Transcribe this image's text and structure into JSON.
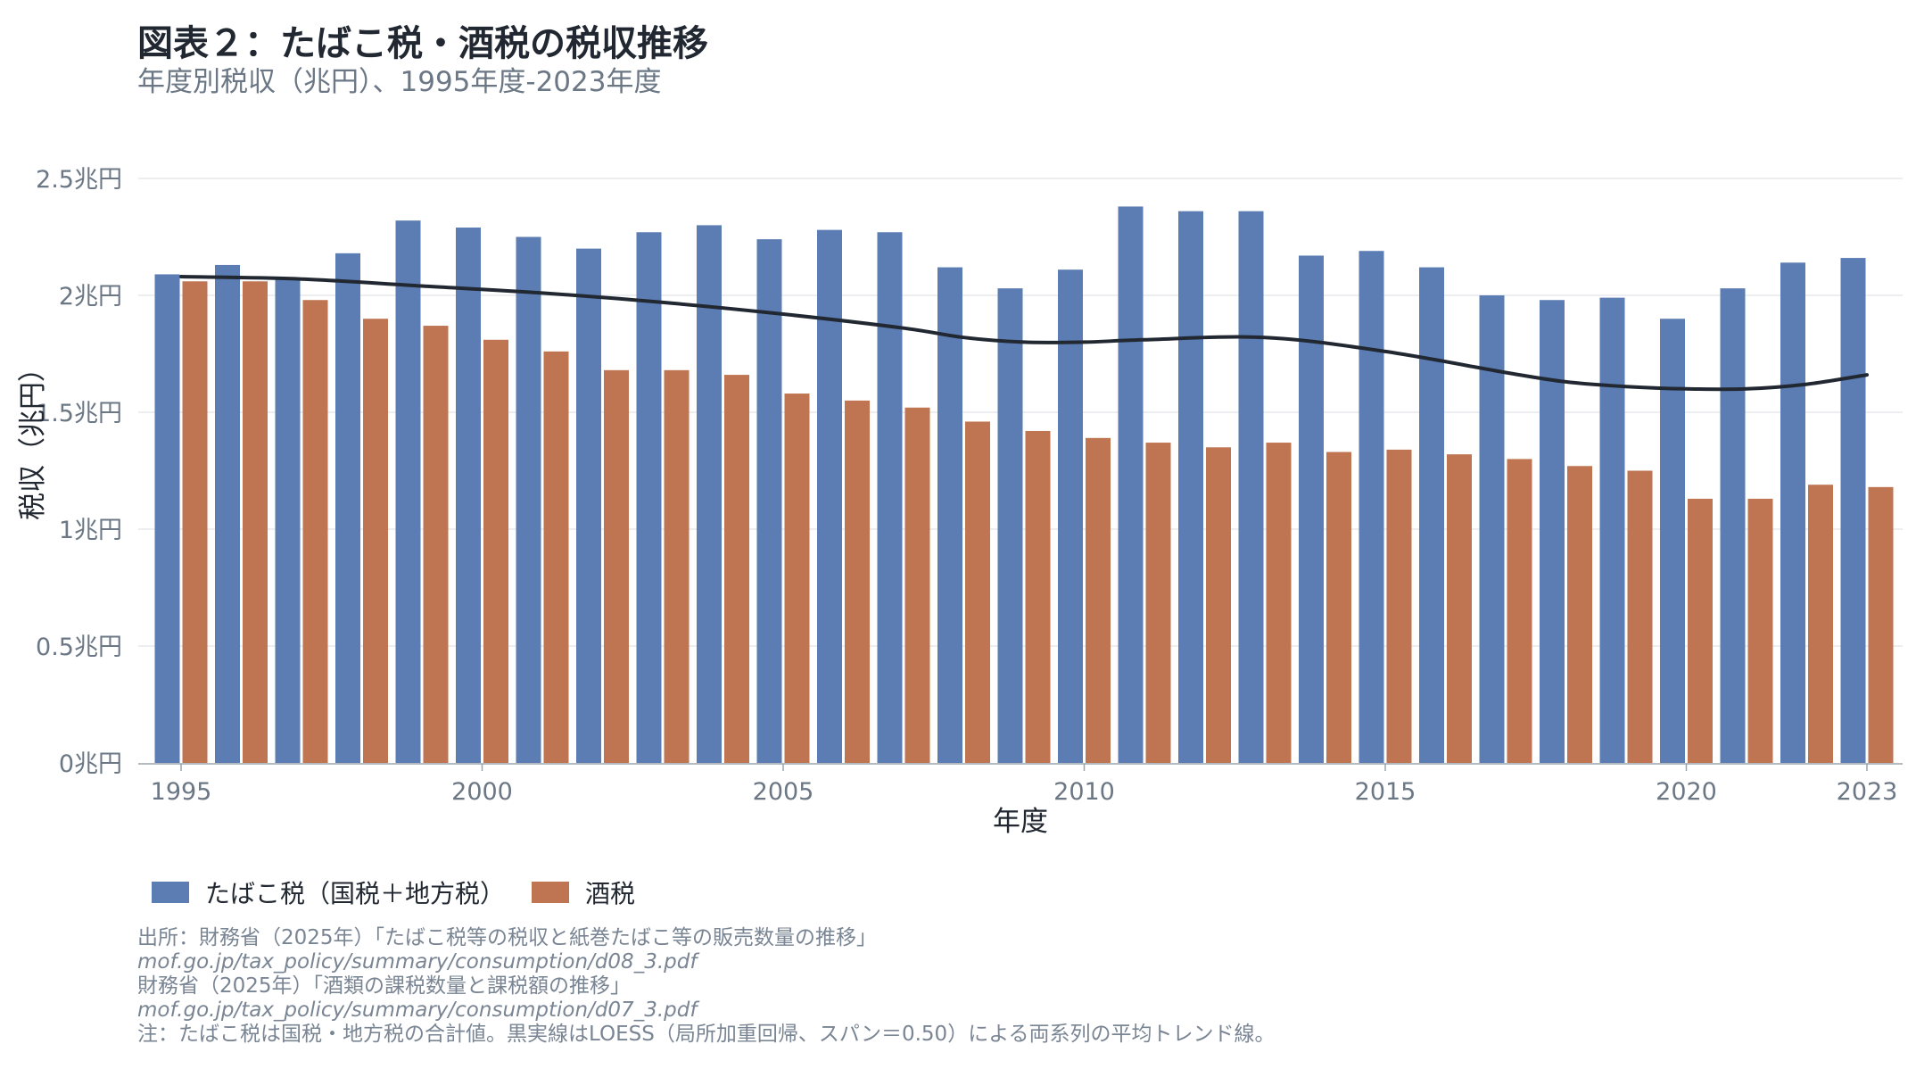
{
  "header": {
    "title": "図表２：たばこ税・酒税の税収推移",
    "subtitle": "年度別税収（兆円）、1995年度-2023年度"
  },
  "legend": {
    "tobacco": "たばこ税（国税＋地方税）",
    "liquor": "酒税"
  },
  "notes": {
    "source1": "出所：財務省（2025年）「たばこ税等の税収と紙巻たばこ等の販売数量の推移」",
    "url1": "mof.go.jp/tax_policy/summary/consumption/d08_3.pdf",
    "source2": "財務省（2025年）「酒類の課税数量と課税額の推移」",
    "url2": "mof.go.jp/tax_policy/summary/consumption/d07_3.pdf",
    "note": "注：たばこ税は国税・地方税の合計値。黒実線はLOESS（局所加重回帰、スパン＝0.50）による両系列の平均トレンド線。"
  },
  "colors": {
    "tobacco": "#5b7db3",
    "liquor": "#bf7452",
    "trend": "#222831",
    "grid": "#e6e9ee",
    "axis_text": "#6b7785"
  },
  "chart_data": {
    "type": "bar",
    "title": "図表２：たばこ税・酒税の税収推移",
    "xlabel": "年度",
    "ylabel": "税収（兆円）",
    "ylim": [
      0,
      2.5
    ],
    "yticks": [
      0,
      0.5,
      1,
      1.5,
      2,
      2.5
    ],
    "ytick_labels": [
      "0兆円",
      "0.5兆円",
      "1兆円",
      "1.5兆円",
      "2兆円",
      "2.5兆円"
    ],
    "xticks": [
      1995,
      2000,
      2005,
      2010,
      2015,
      2020,
      2023
    ],
    "xtick_labels": [
      "1995",
      "2000",
      "2005",
      "2010",
      "2015",
      "2020",
      "2023"
    ],
    "categories": [
      1995,
      1996,
      1997,
      1998,
      1999,
      2000,
      2001,
      2002,
      2003,
      2004,
      2005,
      2006,
      2007,
      2008,
      2009,
      2010,
      2011,
      2012,
      2013,
      2014,
      2015,
      2016,
      2017,
      2018,
      2019,
      2020,
      2021,
      2022,
      2023
    ],
    "series": [
      {
        "name": "たばこ税（国税＋地方税）",
        "values": [
          2.09,
          2.13,
          2.07,
          2.18,
          2.32,
          2.29,
          2.25,
          2.2,
          2.27,
          2.3,
          2.24,
          2.28,
          2.27,
          2.12,
          2.03,
          2.11,
          2.38,
          2.36,
          2.36,
          2.17,
          2.19,
          2.12,
          2.0,
          1.98,
          1.99,
          1.9,
          2.03,
          2.14,
          2.16
        ]
      },
      {
        "name": "酒税",
        "values": [
          2.06,
          2.06,
          1.98,
          1.9,
          1.87,
          1.81,
          1.76,
          1.68,
          1.68,
          1.66,
          1.58,
          1.55,
          1.52,
          1.46,
          1.42,
          1.39,
          1.37,
          1.35,
          1.37,
          1.33,
          1.34,
          1.32,
          1.3,
          1.27,
          1.25,
          1.13,
          1.13,
          1.19,
          1.18
        ]
      }
    ],
    "trend": {
      "name": "LOESS平均トレンド",
      "x": [
        1995,
        1997,
        1999,
        2001,
        2003,
        2005,
        2007,
        2008,
        2009,
        2010,
        2011,
        2013,
        2015,
        2017,
        2018,
        2019,
        2020,
        2021,
        2022,
        2023
      ],
      "y": [
        2.08,
        2.07,
        2.04,
        2.01,
        1.97,
        1.92,
        1.86,
        1.82,
        1.8,
        1.8,
        1.81,
        1.82,
        1.76,
        1.67,
        1.63,
        1.61,
        1.6,
        1.6,
        1.62,
        1.66
      ]
    }
  }
}
